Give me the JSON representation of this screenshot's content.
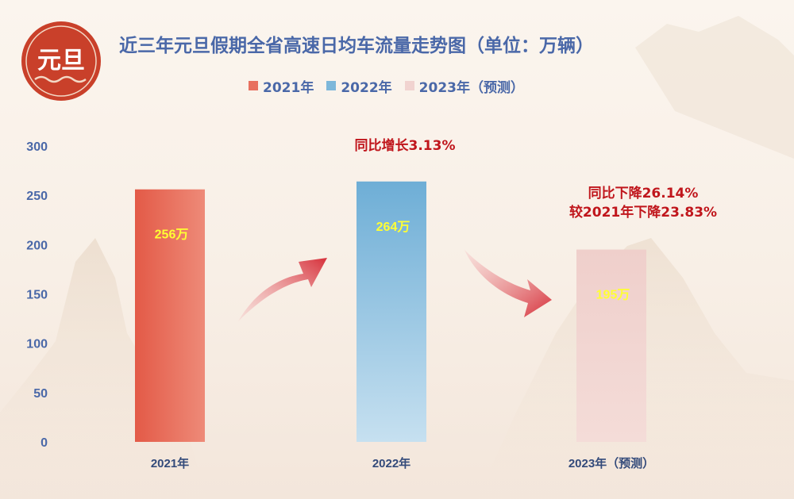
{
  "title": "近三年元旦假期全省高速日均车流量走势图（单位：万辆）",
  "logo": {
    "text": "元旦"
  },
  "legend": [
    {
      "label": "2021年",
      "color": "#e8705f"
    },
    {
      "label": "2022年",
      "color": "#7db7da"
    },
    {
      "label": "2023年（预测）",
      "color": "#f1d3d0"
    }
  ],
  "annotations": {
    "a2022": "同比增长3.13%",
    "a2023_line1": "同比下降26.14%",
    "a2023_line2": "较2021年下降23.83%"
  },
  "colors": {
    "axis_text": "#4a68a8",
    "annotation": "#c0161c",
    "data_label": "#ffff33",
    "arrow": "#d6303a"
  },
  "chart_data": {
    "type": "bar",
    "title": "近三年元旦假期全省高速日均车流量走势图（单位：万辆）",
    "categories": [
      "2021年",
      "2022年",
      "2023年（预测）"
    ],
    "values": [
      256,
      264,
      195
    ],
    "data_labels": [
      "256万",
      "264万",
      "195万"
    ],
    "ylim": [
      0,
      300
    ],
    "yticks": [
      0,
      50,
      100,
      150,
      200,
      250,
      300
    ],
    "xlabel": "",
    "ylabel": "",
    "grid": false,
    "legend_position": "top"
  }
}
